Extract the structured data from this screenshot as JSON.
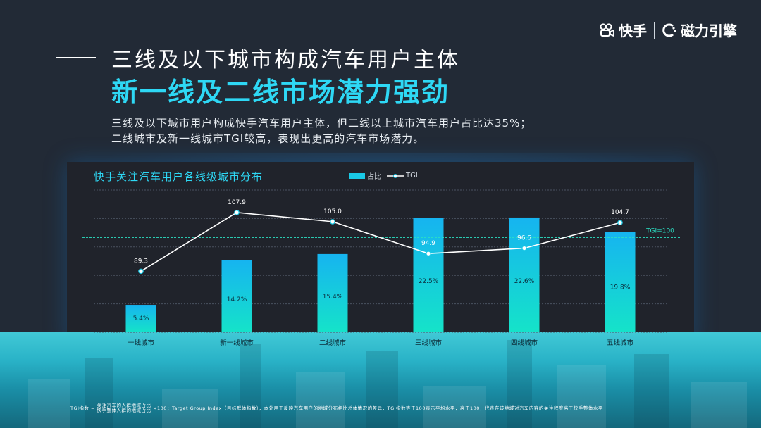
{
  "brand": {
    "kuaishou": "快手",
    "engine": "磁力引擎"
  },
  "header": {
    "title_line1": "三线及以下城市构成汽车用户主体",
    "title_line2": "新一线及二线市场潜力强劲"
  },
  "description": {
    "line1": "三线及以下城市用户构成快手汽车用户主体，但二线以上城市汽车用户占比达35%；",
    "line2": "二线城市及新一线城市TGI较高，表现出更高的汽车市场潜力。"
  },
  "footnote": {
    "prefix": "TGI指数 =",
    "numerator": "关注汽车的人群地域占比",
    "denominator": "快手整体人群的地域占比",
    "rest": "×100；Target Group Index（目标群体指数），本处用于反映汽车用户的地域分布相比总体情况的差异，TGI指数等于100表示平均水平，高于100，代表在该地域对汽车内容的关注程度高于快手整体水平"
  },
  "colors": {
    "accent": "#2ed8f5",
    "bar_top": "#16b4f0",
    "bar_bottom": "#15e3c9",
    "reference_line": "#2be0c4"
  },
  "chart_data": {
    "type": "bar",
    "title": "快手关注汽车用户各线级城市分布",
    "categories": [
      "一线城市",
      "新一线城市",
      "二线城市",
      "三线城市",
      "四线城市",
      "五线城市"
    ],
    "series": [
      {
        "name": "占比",
        "type": "bar",
        "values": [
          5.4,
          14.2,
          15.4,
          22.5,
          22.6,
          19.8
        ],
        "labels": [
          "5.4%",
          "14.2%",
          "15.4%",
          "22.5%",
          "22.6%",
          "19.8%"
        ]
      },
      {
        "name": "TGI",
        "type": "line",
        "values": [
          89.3,
          107.9,
          105.0,
          94.9,
          96.6,
          104.7
        ],
        "labels": [
          "89.3",
          "107.9",
          "105.0",
          "94.9",
          "96.6",
          "104.7"
        ]
      }
    ],
    "reference_line": {
      "label": "TGI=100",
      "value": 100
    },
    "legend": "top-center",
    "grid": true
  }
}
